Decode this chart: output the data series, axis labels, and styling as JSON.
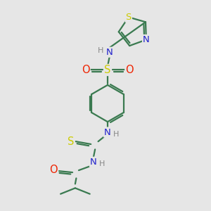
{
  "bg_color": "#e6e6e6",
  "bond_color": "#3a7a50",
  "bond_width": 1.6,
  "atom_colors": {
    "S": "#cccc00",
    "O": "#ee2200",
    "N": "#2222cc",
    "H": "#888888",
    "C": "#3a7a50"
  },
  "font_size": 9.5,
  "font_size_small": 8.0,
  "double_sep": 0.09
}
